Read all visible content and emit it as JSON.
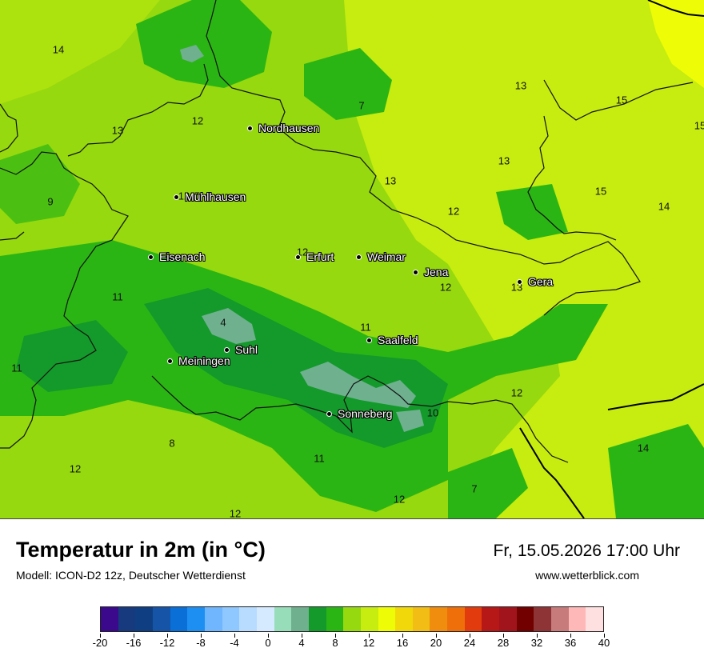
{
  "map": {
    "cities": [
      {
        "name": "Nordhausen"
      },
      {
        "name": "Mühlhausen"
      },
      {
        "name": "Eisenach"
      },
      {
        "name": "Erfurt"
      },
      {
        "name": "Weimar"
      },
      {
        "name": "Jena"
      },
      {
        "name": "Gera"
      },
      {
        "name": "Suhl"
      },
      {
        "name": "Meiningen"
      },
      {
        "name": "Saalfeld"
      },
      {
        "name": "Sonneberg"
      }
    ],
    "temperature_labels": [
      "14",
      "12",
      "13",
      "7",
      "13",
      "15",
      "15",
      "13",
      "13",
      "9",
      "12",
      "15",
      "12",
      "14",
      "12",
      "12",
      "13",
      "11",
      "4",
      "11",
      "11",
      "12",
      "10",
      "8",
      "11",
      "14",
      "12",
      "7",
      "12",
      "12"
    ]
  },
  "footer": {
    "title": "Temperatur in 2m (in °C)",
    "model": "Modell: ICON-D2 12z, Deutscher Wetterdienst",
    "datetime": "Fr, 15.05.2026 17:00 Uhr",
    "website": "www.wetterblick.com"
  },
  "legend": {
    "tick_labels": [
      "-20",
      "-16",
      "-12",
      "-8",
      "-4",
      "0",
      "4",
      "8",
      "12",
      "16",
      "20",
      "24",
      "28",
      "32",
      "36",
      "40"
    ],
    "colors": [
      "#3b0a8c",
      "#173a7e",
      "#0f3f82",
      "#1654a8",
      "#0a6fd6",
      "#1e8ff2",
      "#6fb6ff",
      "#8ec8ff",
      "#b7dcff",
      "#d6eaff",
      "#98ddb9",
      "#6fb08f",
      "#139a2a",
      "#2bb514",
      "#96d90e",
      "#c7ec0f",
      "#eefd06",
      "#f1d80b",
      "#f2bd14",
      "#f08d0f",
      "#ef6f0a",
      "#e23b0e",
      "#b61717",
      "#a2141c",
      "#720000",
      "#8f3436",
      "#c77b7b",
      "#ffb8b8",
      "#ffe0e0"
    ]
  },
  "palette": {
    "field_base": "#96d90e",
    "green_mid": "#2bb514",
    "green_dark": "#139a2a",
    "grey_green": "#6fb08f",
    "yellow_green": "#c7ec0f",
    "yellow": "#eefd06"
  }
}
